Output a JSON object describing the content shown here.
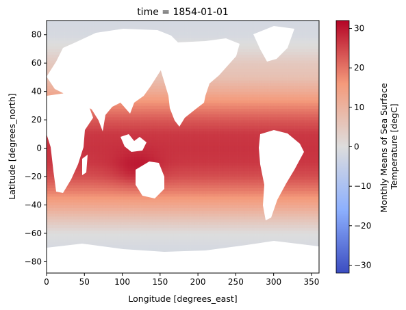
{
  "chart_data": {
    "type": "heatmap",
    "title": "time = 1854-01-01",
    "xlabel": "Longitude [degrees_east]",
    "ylabel": "Latitude [degrees_north]",
    "xlim": [
      0,
      360
    ],
    "ylim": [
      -88,
      90
    ],
    "x_ticks": [
      0,
      50,
      100,
      150,
      200,
      250,
      300,
      350
    ],
    "y_ticks": [
      -80,
      -60,
      -40,
      -20,
      0,
      20,
      40,
      60,
      80
    ],
    "grid": false,
    "colorbar": {
      "label": [
        "Monthly Means of Sea Surface",
        "Temperature [degC]"
      ],
      "range": [
        -32,
        32
      ],
      "ticks": [
        -30,
        -20,
        -10,
        0,
        10,
        20,
        30
      ],
      "colormap": "coolwarm"
    },
    "grid_spacing_deg": 2,
    "sst_by_latitude": {
      "lat": [
        -88,
        -80,
        -70,
        -60,
        -50,
        -40,
        -30,
        -20,
        -10,
        0,
        10,
        20,
        30,
        40,
        50,
        60,
        70,
        80,
        88
      ],
      "value": [
        -1.8,
        -1.8,
        -1.5,
        0,
        6,
        13,
        19,
        24,
        26.5,
        27,
        26.5,
        23,
        18,
        12,
        7,
        5,
        1,
        -1.5,
        -1.8
      ]
    },
    "regional_peak": {
      "lon": 120,
      "lat": -15,
      "value": 31
    }
  }
}
